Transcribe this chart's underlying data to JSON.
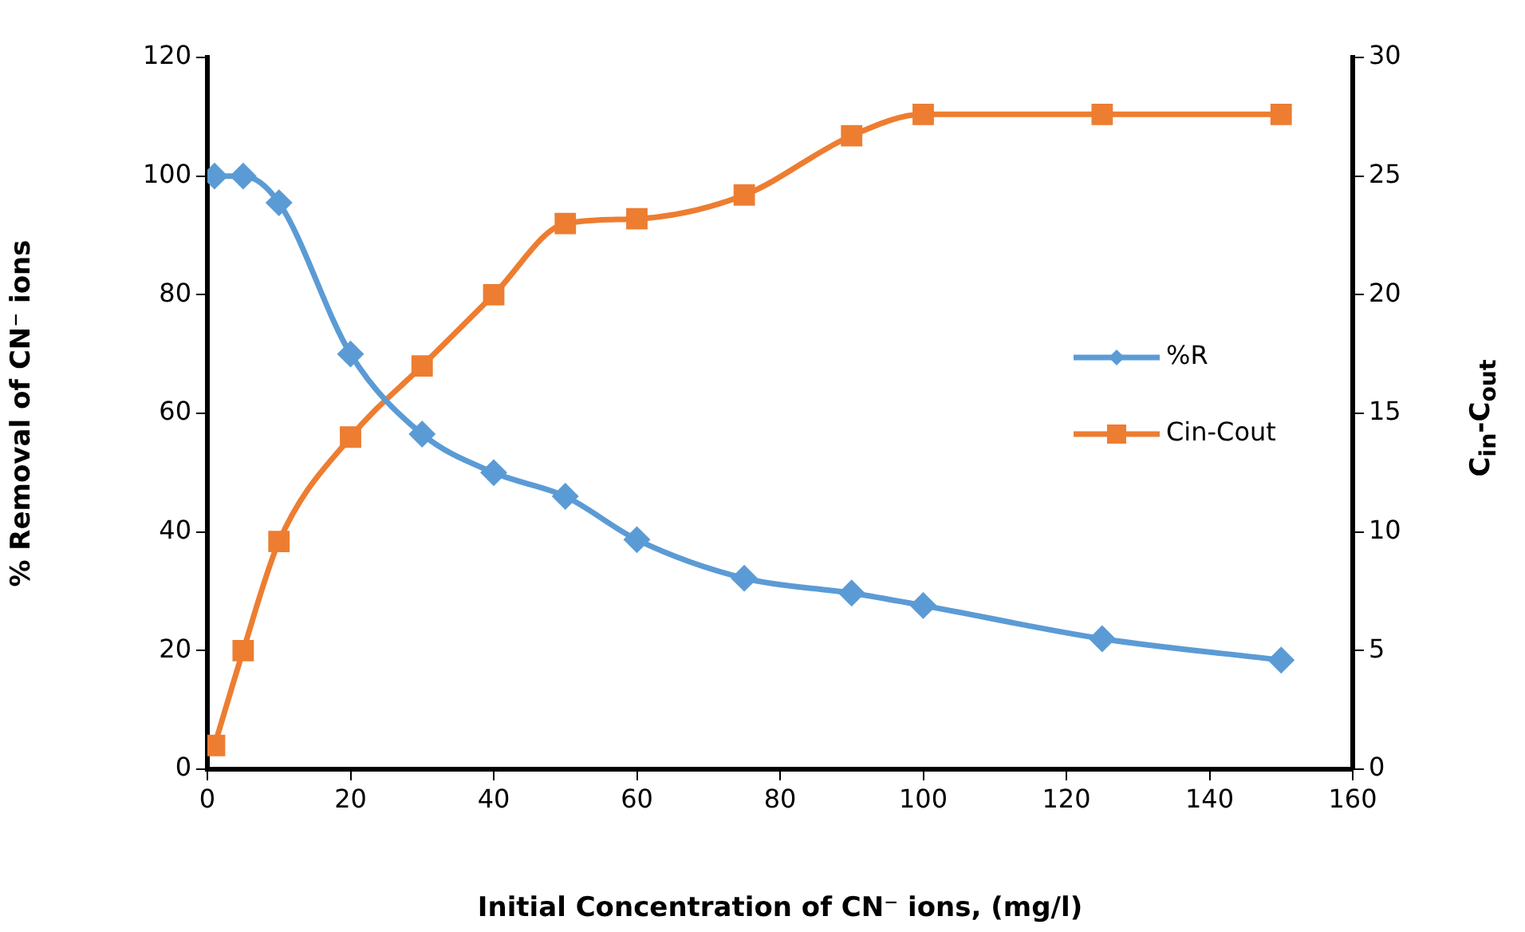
{
  "chart_data": {
    "type": "line",
    "xlabel": "Initial Concentration of CN⁻ ions, (mg/l)",
    "ylabel": "% Removal of CN⁻ ions",
    "y2label": "C$_{in}$-C$_{out}$",
    "x": [
      1,
      5,
      10,
      20,
      30,
      40,
      50,
      60,
      75,
      90,
      100,
      125,
      150
    ],
    "series": [
      {
        "name": "%R",
        "color": "#5b9bd5",
        "marker": "diamond",
        "values": [
          100,
          100,
          95.5,
          70,
          56.5,
          50,
          46,
          38.7,
          32.2,
          29.7,
          27.6,
          22,
          18.4
        ]
      },
      {
        "name": "Cin-Cout",
        "color": "#ed7d31",
        "marker": "square",
        "axis": "y2",
        "values": [
          1,
          5,
          9.6,
          14,
          17,
          20,
          23,
          23.2,
          24.2,
          26.7,
          27.6,
          27.6,
          27.6
        ]
      }
    ],
    "xlim": [
      0,
      160
    ],
    "xticks": [
      0,
      20,
      40,
      60,
      80,
      100,
      120,
      140,
      160
    ],
    "ylim": [
      0,
      120
    ],
    "yticks": [
      0,
      20,
      40,
      60,
      80,
      100,
      120
    ],
    "y2lim": [
      0,
      30
    ],
    "y2ticks": [
      0,
      5,
      10,
      15,
      20,
      25,
      30
    ],
    "legend": "right",
    "grid": false
  }
}
